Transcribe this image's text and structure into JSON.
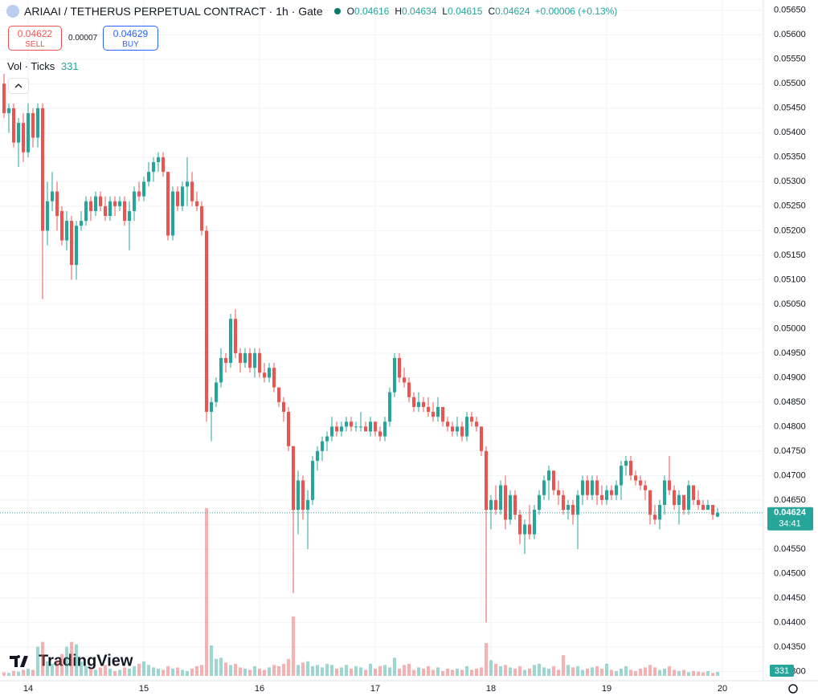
{
  "chart_data": {
    "type": "candlestick",
    "title": "ARIAAI / TETHERUS PERPETUAL CONTRACT · 1h · Gate",
    "up_color": "#26a69a",
    "down_color": "#ef5350",
    "grid": true,
    "ylim": [
      0.04281,
      0.05671
    ],
    "yticks": [
      {
        "value": 0.0565,
        "label": "0.05650"
      },
      {
        "value": 0.056,
        "label": "0.05600"
      },
      {
        "value": 0.0555,
        "label": "0.05550"
      },
      {
        "value": 0.055,
        "label": "0.05500"
      },
      {
        "value": 0.0545,
        "label": "0.05450"
      },
      {
        "value": 0.054,
        "label": "0.05400"
      },
      {
        "value": 0.0535,
        "label": "0.05350"
      },
      {
        "value": 0.053,
        "label": "0.05300"
      },
      {
        "value": 0.0525,
        "label": "0.05250"
      },
      {
        "value": 0.052,
        "label": "0.05200"
      },
      {
        "value": 0.0515,
        "label": "0.05150"
      },
      {
        "value": 0.051,
        "label": "0.05100"
      },
      {
        "value": 0.0505,
        "label": "0.05050"
      },
      {
        "value": 0.05,
        "label": "0.05000"
      },
      {
        "value": 0.0495,
        "label": "0.04950"
      },
      {
        "value": 0.049,
        "label": "0.04900"
      },
      {
        "value": 0.0485,
        "label": "0.04850"
      },
      {
        "value": 0.048,
        "label": "0.04800"
      },
      {
        "value": 0.0475,
        "label": "0.04750"
      },
      {
        "value": 0.047,
        "label": "0.04700"
      },
      {
        "value": 0.0465,
        "label": "0.04650"
      },
      {
        "value": 0.046,
        "label": "0.04600"
      },
      {
        "value": 0.0455,
        "label": "0.04550"
      },
      {
        "value": 0.045,
        "label": "0.04500"
      },
      {
        "value": 0.0445,
        "label": "0.04450"
      },
      {
        "value": 0.044,
        "label": "0.04400"
      },
      {
        "value": 0.0435,
        "label": "0.04350"
      },
      {
        "value": 0.043,
        "label": "0.04300"
      }
    ],
    "categories": [
      null,
      null,
      null,
      null,
      null,
      "14",
      null,
      null,
      null,
      null,
      null,
      null,
      null,
      null,
      null,
      null,
      null,
      null,
      null,
      null,
      null,
      null,
      null,
      null,
      null,
      null,
      null,
      null,
      null,
      "15",
      null,
      null,
      null,
      null,
      null,
      null,
      null,
      null,
      null,
      null,
      null,
      null,
      null,
      null,
      null,
      null,
      null,
      null,
      null,
      null,
      null,
      null,
      null,
      "16",
      null,
      null,
      null,
      null,
      null,
      null,
      null,
      null,
      null,
      null,
      null,
      null,
      null,
      null,
      null,
      null,
      null,
      null,
      null,
      null,
      null,
      null,
      null,
      "17",
      null,
      null,
      null,
      null,
      null,
      null,
      null,
      null,
      null,
      null,
      null,
      null,
      null,
      null,
      null,
      null,
      null,
      null,
      null,
      null,
      null,
      null,
      null,
      "18",
      null,
      null,
      null,
      null,
      null,
      null,
      null,
      null,
      null,
      null,
      null,
      null,
      null,
      null,
      null,
      null,
      null,
      null,
      null,
      null,
      null,
      null,
      null,
      "19",
      null,
      null,
      null,
      null,
      null,
      null,
      null,
      null,
      null,
      null,
      null,
      null,
      null,
      null,
      null,
      null,
      null,
      null,
      null,
      null,
      null,
      null,
      null,
      "20"
    ],
    "open": [
      0.055,
      0.0544,
      0.0545,
      0.0538,
      0.0542,
      0.0536,
      0.0544,
      0.0539,
      0.0545,
      0.052,
      0.0526,
      0.0528,
      0.0524,
      0.0518,
      0.0522,
      0.0513,
      0.0521,
      0.0522,
      0.0526,
      0.0524,
      0.0527,
      0.0525,
      0.0523,
      0.0526,
      0.0525,
      0.0526,
      0.0522,
      0.0524,
      0.0528,
      0.0527,
      0.053,
      0.0532,
      0.0534,
      0.0535,
      0.0532,
      0.0519,
      0.0528,
      0.0525,
      0.0529,
      0.053,
      0.0526,
      0.0525,
      0.052,
      0.0483,
      0.0485,
      0.0489,
      0.0494,
      0.0493,
      0.0502,
      0.0495,
      0.0493,
      0.0495,
      0.0492,
      0.0495,
      0.0491,
      0.049,
      0.0492,
      0.0488,
      0.0485,
      0.0483,
      0.0476,
      0.0463,
      0.0469,
      0.0463,
      0.0465,
      0.0473,
      0.0475,
      0.0477,
      0.0478,
      0.048,
      0.0479,
      0.048,
      0.0481,
      0.048,
      0.048,
      0.048,
      0.0479,
      0.0481,
      0.0479,
      0.0478,
      0.0481,
      0.0487,
      0.0494,
      0.049,
      0.0489,
      0.0486,
      0.0484,
      0.0485,
      0.0484,
      0.0483,
      0.0482,
      0.0484,
      0.0481,
      0.048,
      0.0479,
      0.048,
      0.0478,
      0.0482,
      0.0481,
      0.048,
      0.0475,
      0.0463,
      0.0465,
      0.0463,
      0.0468,
      0.0461,
      0.0466,
      0.0462,
      0.0458,
      0.046,
      0.0458,
      0.0463,
      0.0466,
      0.0469,
      0.0471,
      0.0467,
      0.0466,
      0.0463,
      0.0464,
      0.0462,
      0.0466,
      0.0469,
      0.0466,
      0.0469,
      0.0466,
      0.0465,
      0.0467,
      0.0466,
      0.0468,
      0.0472,
      0.0473,
      0.047,
      0.0469,
      0.0468,
      0.0467,
      0.0462,
      0.0461,
      0.0464,
      0.0469,
      0.0467,
      0.0464,
      0.0466,
      0.0463,
      0.0468,
      0.0465,
      0.0464,
      0.0463,
      0.0464,
      0.04616,
      null
    ],
    "high": [
      0.0552,
      0.0546,
      0.0546,
      0.0543,
      0.0544,
      0.0546,
      0.0545,
      0.0546,
      0.0546,
      0.053,
      0.0532,
      0.053,
      0.0525,
      0.0524,
      0.0523,
      0.0522,
      0.0524,
      0.0527,
      0.0527,
      0.0528,
      0.0528,
      0.0527,
      0.0527,
      0.0527,
      0.0527,
      0.0527,
      0.0526,
      0.0529,
      0.053,
      0.0531,
      0.0534,
      0.0535,
      0.0536,
      0.0536,
      0.0532,
      0.0529,
      0.0529,
      0.053,
      0.0535,
      0.0532,
      0.0528,
      0.0526,
      0.0521,
      0.0486,
      0.049,
      0.0496,
      0.0495,
      0.0503,
      0.0504,
      0.0496,
      0.0496,
      0.0496,
      0.0496,
      0.0496,
      0.0493,
      0.0493,
      0.0493,
      0.0488,
      0.0486,
      0.0484,
      0.0476,
      0.0471,
      0.047,
      0.0467,
      0.0474,
      0.0476,
      0.0478,
      0.0479,
      0.0482,
      0.0481,
      0.0481,
      0.0482,
      0.0482,
      0.0481,
      0.0483,
      0.0481,
      0.0482,
      0.0481,
      0.048,
      0.0482,
      0.0488,
      0.0495,
      0.0495,
      0.0492,
      0.049,
      0.0487,
      0.0487,
      0.0486,
      0.0486,
      0.0485,
      0.0486,
      0.0484,
      0.0482,
      0.0481,
      0.0482,
      0.0481,
      0.0483,
      0.0483,
      0.0482,
      0.048,
      0.0476,
      0.0466,
      0.0468,
      0.0469,
      0.047,
      0.0467,
      0.0467,
      0.0463,
      0.0461,
      0.0464,
      0.0464,
      0.0467,
      0.047,
      0.0472,
      0.0471,
      0.0469,
      0.0467,
      0.0465,
      0.0465,
      0.0467,
      0.047,
      0.047,
      0.047,
      0.047,
      0.0468,
      0.0468,
      0.0468,
      0.0469,
      0.0473,
      0.0474,
      0.0474,
      0.0471,
      0.047,
      0.0469,
      0.0467,
      0.0464,
      0.0465,
      0.047,
      0.0474,
      0.0468,
      0.0467,
      0.0466,
      0.0469,
      0.0468,
      0.0467,
      0.0465,
      0.0465,
      0.0464,
      0.04634,
      null
    ],
    "low": [
      0.0543,
      0.054,
      0.0537,
      0.0533,
      0.0534,
      0.0535,
      0.0537,
      0.0537,
      0.0506,
      0.0517,
      0.0524,
      0.052,
      0.0517,
      0.0516,
      0.051,
      0.051,
      0.052,
      0.0521,
      0.0522,
      0.0523,
      0.0524,
      0.0522,
      0.0522,
      0.0523,
      0.0524,
      0.0521,
      0.0516,
      0.0522,
      0.0526,
      0.0526,
      0.0529,
      0.053,
      0.0532,
      0.0531,
      0.0518,
      0.0518,
      0.0524,
      0.0524,
      0.0525,
      0.0525,
      0.0524,
      0.0519,
      0.0481,
      0.0477,
      0.0484,
      0.0488,
      0.0491,
      0.0492,
      0.0494,
      0.0491,
      0.0492,
      0.0491,
      0.049,
      0.049,
      0.0489,
      0.0489,
      0.0487,
      0.0484,
      0.0481,
      0.0475,
      0.0446,
      0.0458,
      0.0461,
      0.0455,
      0.0464,
      0.0471,
      0.0473,
      0.0475,
      0.0477,
      0.0478,
      0.0478,
      0.0479,
      0.0479,
      0.0479,
      0.0479,
      0.0479,
      0.0478,
      0.0478,
      0.0477,
      0.0477,
      0.048,
      0.0486,
      0.0489,
      0.0488,
      0.0485,
      0.0483,
      0.0483,
      0.0483,
      0.0482,
      0.0481,
      0.0481,
      0.048,
      0.0479,
      0.0478,
      0.0478,
      0.0477,
      0.0477,
      0.048,
      0.0479,
      0.0474,
      0.044,
      0.0459,
      0.0462,
      0.0462,
      0.0459,
      0.046,
      0.0461,
      0.0456,
      0.0454,
      0.0457,
      0.0457,
      0.0462,
      0.0465,
      0.0465,
      0.0466,
      0.0464,
      0.0462,
      0.0461,
      0.046,
      0.0455,
      0.0464,
      0.0465,
      0.0465,
      0.0464,
      0.0464,
      0.0464,
      0.0465,
      0.0465,
      0.0465,
      0.047,
      0.0469,
      0.0468,
      0.0467,
      0.0465,
      0.046,
      0.046,
      0.0459,
      0.0462,
      0.0466,
      0.0463,
      0.046,
      0.0462,
      0.0462,
      0.0464,
      0.0463,
      0.0463,
      0.0463,
      0.0461,
      0.04615,
      null
    ],
    "close": [
      0.0544,
      0.0545,
      0.0538,
      0.0542,
      0.0536,
      0.0544,
      0.0539,
      0.0545,
      0.052,
      0.0526,
      0.0528,
      0.0523,
      0.0518,
      0.0522,
      0.0513,
      0.0521,
      0.0522,
      0.0526,
      0.0524,
      0.0527,
      0.0525,
      0.0523,
      0.0526,
      0.0525,
      0.0526,
      0.0522,
      0.0524,
      0.0528,
      0.0527,
      0.053,
      0.0532,
      0.0534,
      0.0535,
      0.0532,
      0.0519,
      0.0528,
      0.0525,
      0.0529,
      0.053,
      0.0526,
      0.0525,
      0.052,
      0.0483,
      0.0485,
      0.0489,
      0.0494,
      0.0493,
      0.0502,
      0.0495,
      0.0493,
      0.0495,
      0.0492,
      0.0495,
      0.0491,
      0.049,
      0.0492,
      0.0488,
      0.0485,
      0.0483,
      0.0476,
      0.0463,
      0.0469,
      0.0463,
      0.0465,
      0.0473,
      0.0475,
      0.0477,
      0.0478,
      0.048,
      0.0479,
      0.048,
      0.0481,
      0.048,
      0.048,
      0.048,
      0.0479,
      0.0481,
      0.0479,
      0.0478,
      0.0481,
      0.0487,
      0.0494,
      0.049,
      0.0489,
      0.0486,
      0.0484,
      0.0485,
      0.0484,
      0.0483,
      0.0482,
      0.0484,
      0.0481,
      0.048,
      0.0479,
      0.048,
      0.0478,
      0.0482,
      0.0481,
      0.048,
      0.0475,
      0.0463,
      0.0465,
      0.0463,
      0.0468,
      0.0461,
      0.0466,
      0.0462,
      0.0458,
      0.046,
      0.0458,
      0.0463,
      0.0466,
      0.0469,
      0.0471,
      0.0467,
      0.0466,
      0.0463,
      0.0464,
      0.0462,
      0.0466,
      0.0469,
      0.0466,
      0.0469,
      0.0466,
      0.0465,
      0.0467,
      0.0466,
      0.0468,
      0.0472,
      0.0473,
      0.047,
      0.0469,
      0.0468,
      0.0467,
      0.0462,
      0.0461,
      0.0464,
      0.0469,
      0.0467,
      0.0464,
      0.0466,
      0.0463,
      0.0468,
      0.0465,
      0.0464,
      0.0463,
      0.0464,
      0.0462,
      0.04624,
      null
    ],
    "volume": [
      300,
      250,
      400,
      350,
      500,
      600,
      500,
      2400,
      2800,
      1200,
      1000,
      1300,
      1800,
      2400,
      2800,
      2600,
      1200,
      800,
      600,
      500,
      700,
      900,
      600,
      400,
      500,
      700,
      600,
      800,
      1000,
      1200,
      900,
      700,
      600,
      500,
      800,
      600,
      700,
      500,
      400,
      600,
      800,
      900,
      13800,
      2500,
      1400,
      1500,
      1100,
      900,
      1000,
      700,
      600,
      500,
      800,
      600,
      500,
      700,
      900,
      800,
      1000,
      1400,
      4900,
      900,
      1100,
      1200,
      800,
      900,
      700,
      1000,
      900,
      600,
      700,
      900,
      600,
      800,
      700,
      500,
      1000,
      600,
      800,
      900,
      700,
      1500,
      600,
      900,
      1000,
      500,
      700,
      600,
      800,
      500,
      700,
      400,
      600,
      500,
      600,
      500,
      800,
      500,
      600,
      700,
      2700,
      1300,
      1000,
      800,
      900,
      700,
      600,
      800,
      500,
      600,
      900,
      1000,
      700,
      600,
      800,
      500,
      1700,
      900,
      700,
      800,
      500,
      600,
      700,
      800,
      600,
      1000,
      500,
      400,
      600,
      800,
      500,
      400,
      600,
      700,
      900,
      700,
      500,
      600,
      800,
      500,
      400,
      500,
      300,
      400,
      350,
      300,
      400,
      250,
      331,
      null
    ]
  },
  "header": {
    "ohlc_letters": [
      "O",
      "H",
      "L",
      "C"
    ],
    "change": "+0.00006 (+0.13%)"
  },
  "trade": {
    "sell_price": "0.04622",
    "sell": "SELL",
    "spread": "0.00007",
    "buy_price": "0.04629",
    "buy": "BUY"
  },
  "indicator": "Vol · Ticks",
  "countdown": "34:41",
  "logo": "TradingView"
}
